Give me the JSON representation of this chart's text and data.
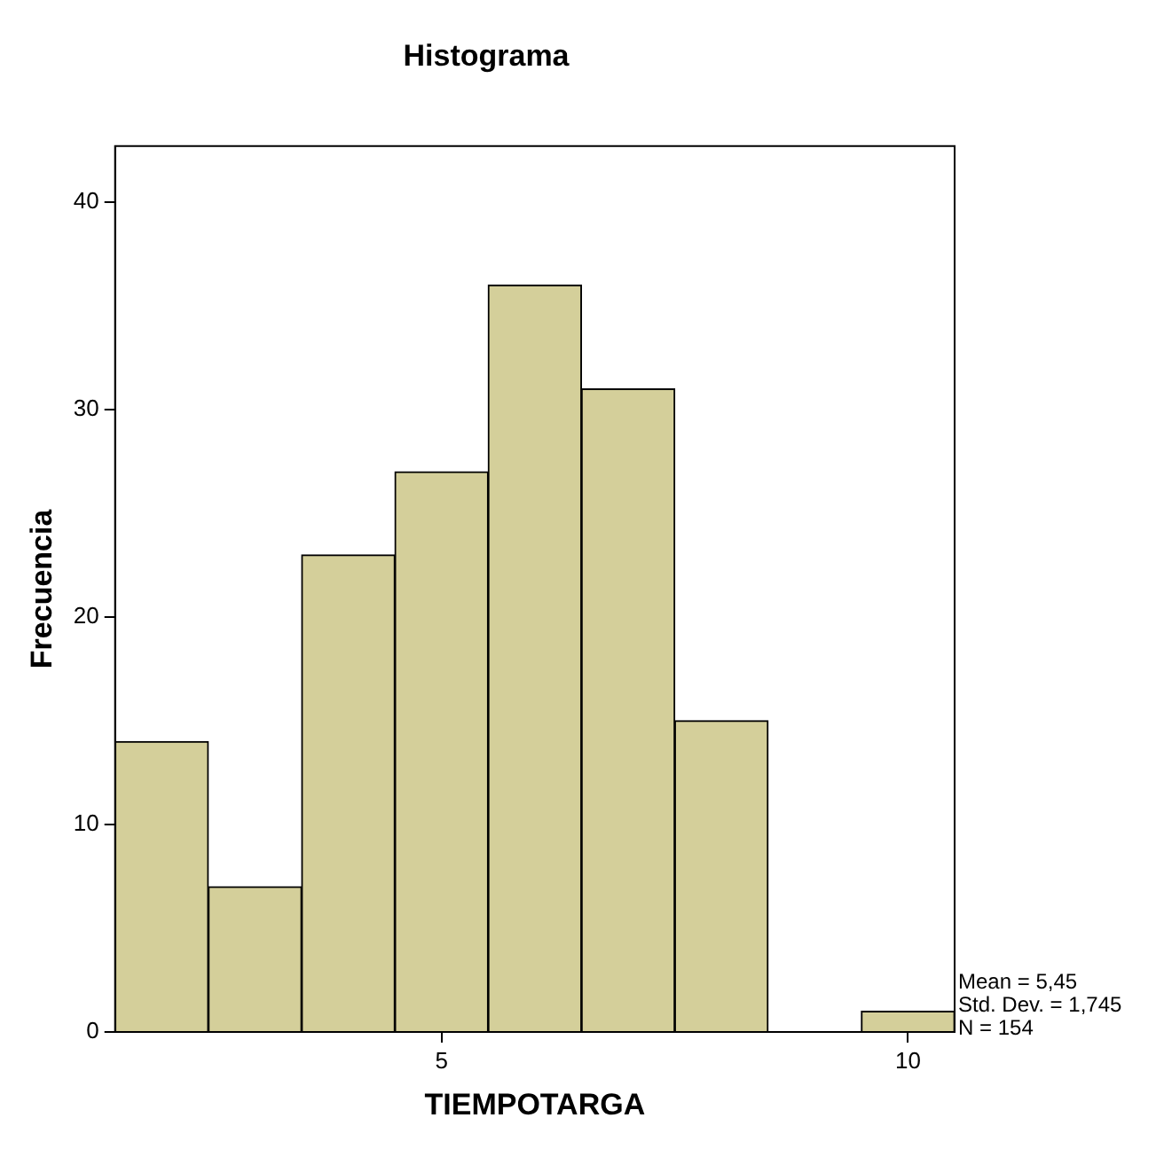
{
  "chart_data": {
    "type": "histogram",
    "title": "Histograma",
    "xlabel": "TIEMPOTARGA",
    "ylabel": "Frecuencia",
    "bins": [
      1.5,
      2.5,
      3.5,
      4.5,
      5.5,
      6.5,
      7.5,
      8.5,
      9.5,
      10.5
    ],
    "values": [
      14,
      7,
      23,
      27,
      36,
      31,
      15,
      0,
      1
    ],
    "color": "#d4cf9a",
    "xlim": [
      1.5,
      10.5
    ],
    "xticks": [
      5,
      10
    ],
    "ylim": [
      0,
      42.7
    ],
    "yticks": [
      0,
      10,
      20,
      30,
      40
    ],
    "legend": false,
    "annotations": [
      "Mean = 5,45",
      "Std. Dev. = 1,745",
      "N = 154"
    ]
  }
}
